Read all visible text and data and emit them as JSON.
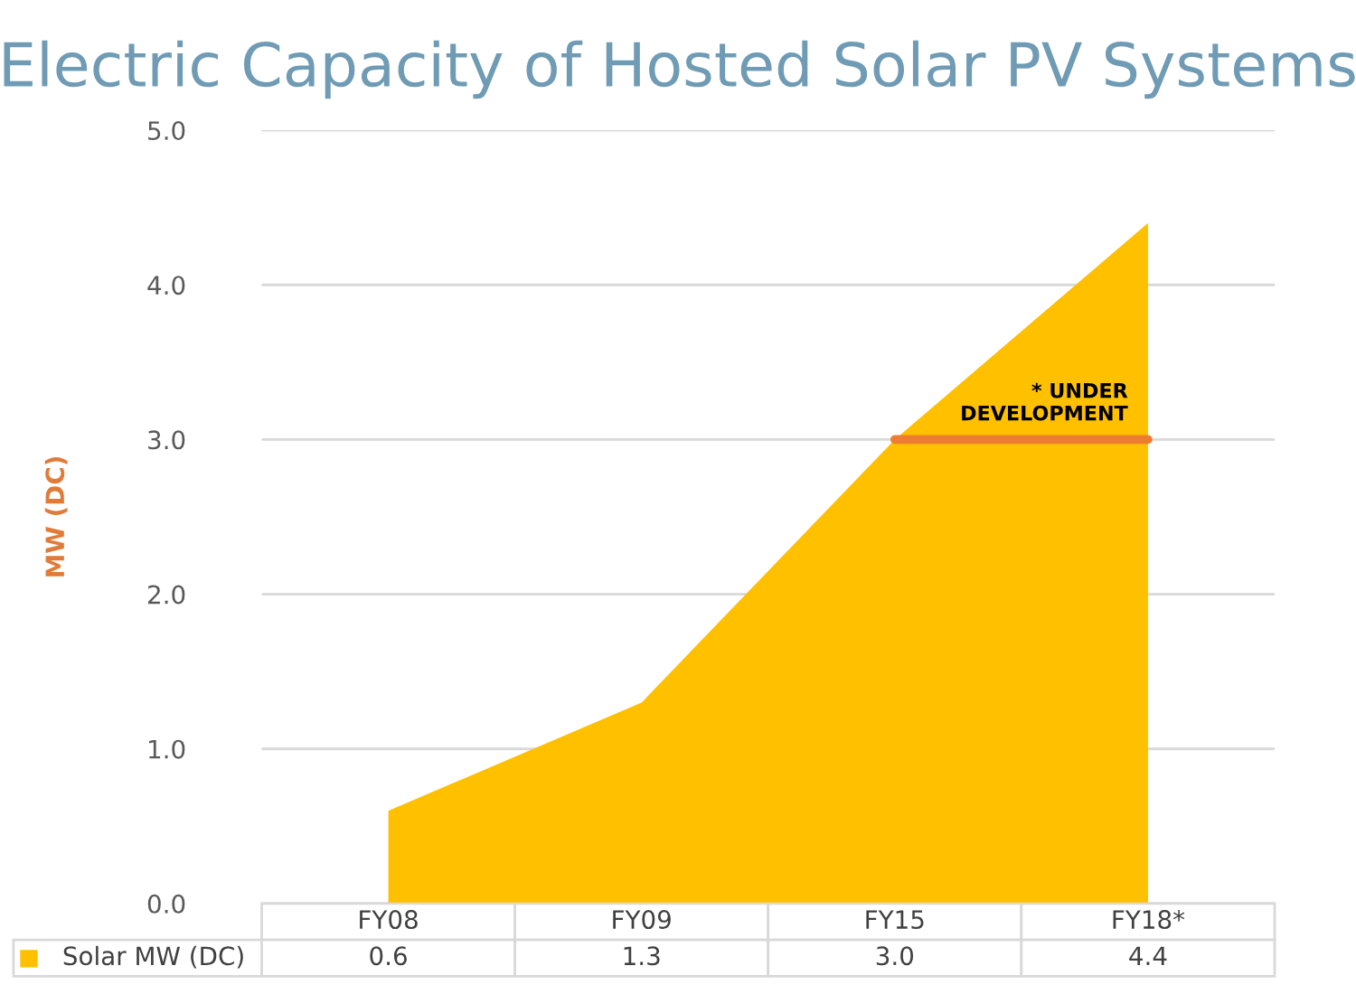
{
  "chart_data": {
    "type": "area",
    "title": "Electric Capacity of Hosted Solar PV Systems",
    "ylabel": "MW (DC)",
    "categories": [
      "FY08",
      "FY09",
      "FY15",
      "FY18*"
    ],
    "series": [
      {
        "name": "Solar MW (DC)",
        "color": "#ffc000",
        "values": [
          0.6,
          1.3,
          3.0,
          4.4
        ],
        "value_labels": [
          "0.6",
          "1.3",
          "3.0",
          "4.4"
        ]
      },
      {
        "type": "line",
        "color": "#ed7d31",
        "values": [
          null,
          null,
          3.0,
          3.0
        ]
      }
    ],
    "ylim": [
      0,
      5
    ],
    "yticks": [
      {
        "value": 0,
        "label": "0.0"
      },
      {
        "value": 1,
        "label": "1.0"
      },
      {
        "value": 2,
        "label": "2.0"
      },
      {
        "value": 3,
        "label": "3.0"
      },
      {
        "value": 4,
        "label": "4.0"
      },
      {
        "value": 5,
        "label": "5.0"
      }
    ],
    "grid": "y",
    "annotations": [
      {
        "text": "* UNDER\nDEVELOPMENT",
        "x": "FY18*",
        "y": 3.0
      }
    ]
  }
}
